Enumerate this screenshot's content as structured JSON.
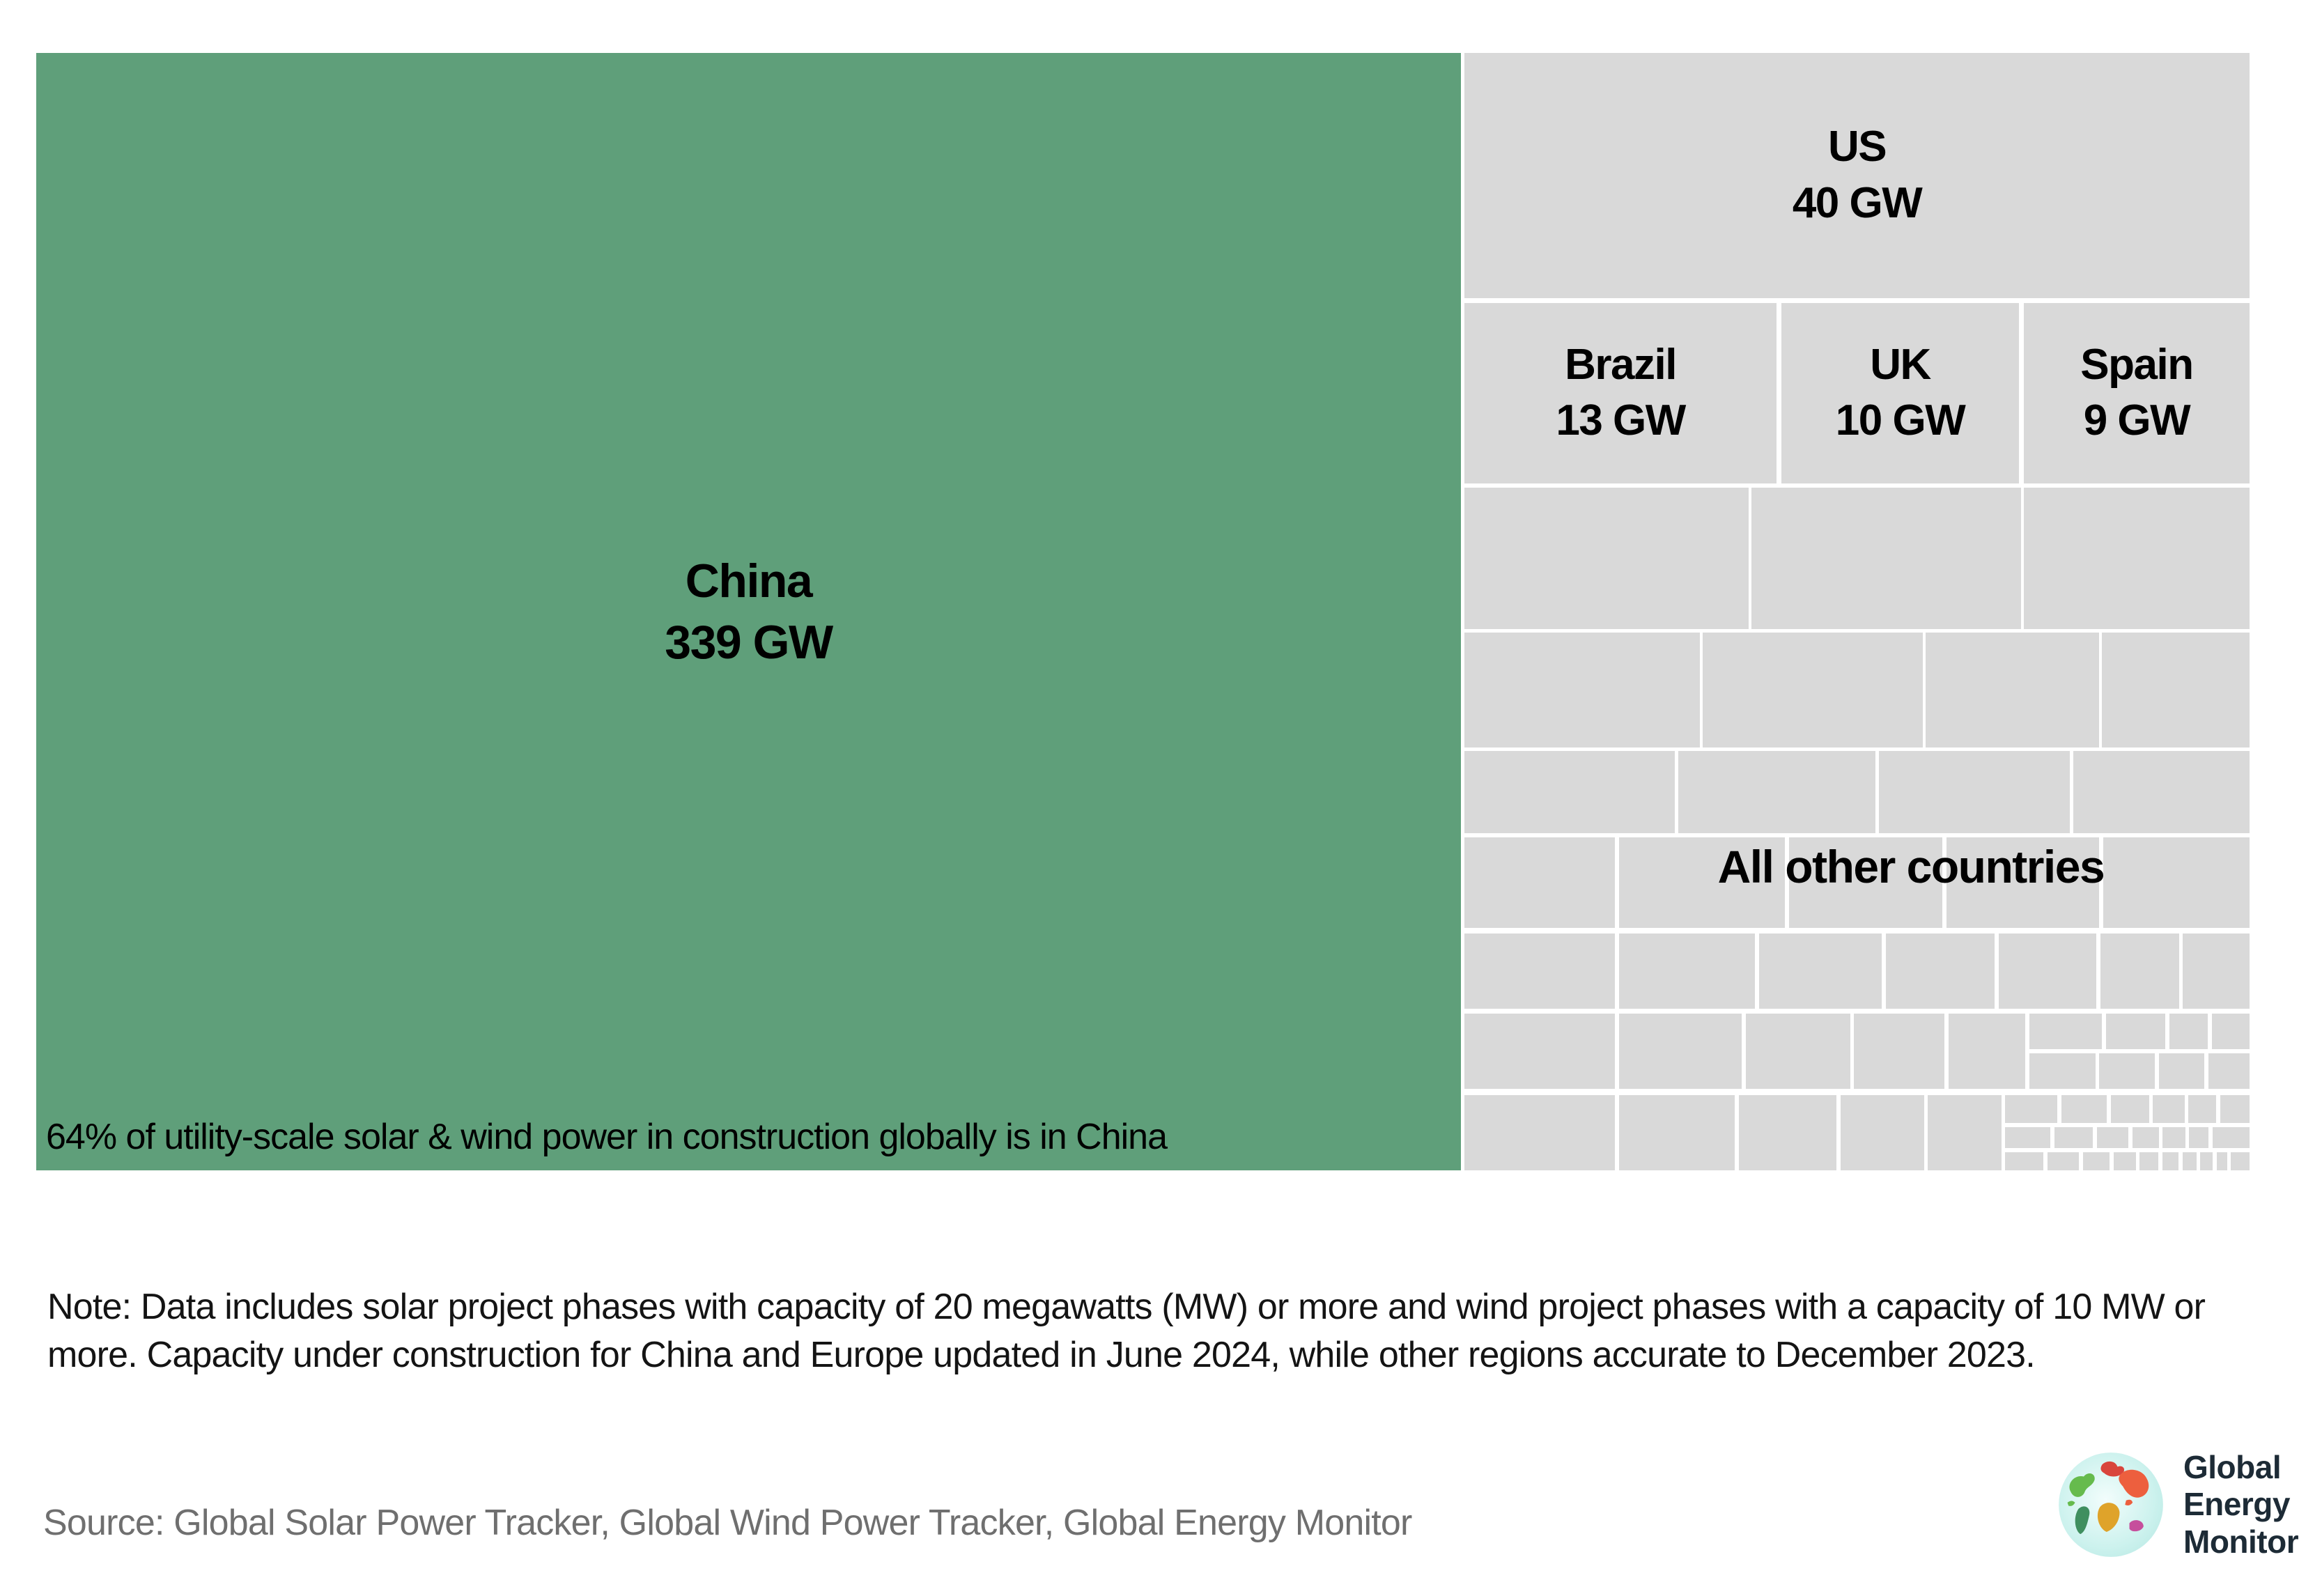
{
  "chart_data": {
    "type": "treemap",
    "unit": "GW",
    "series": [
      {
        "name": "China",
        "value": 339,
        "label": "China 339 GW",
        "color": "#5f9f7a"
      },
      {
        "name": "US",
        "value": 40,
        "label": "US 40 GW",
        "color": "#d9d9d9"
      },
      {
        "name": "Brazil",
        "value": 13,
        "label": "Brazil 13 GW",
        "color": "#d9d9d9"
      },
      {
        "name": "UK",
        "value": 10,
        "label": "UK 10 GW",
        "color": "#d9d9d9"
      },
      {
        "name": "Spain",
        "value": 9,
        "label": "Spain 9 GW",
        "color": "#d9d9d9"
      },
      {
        "name": "All other countries",
        "value": null,
        "label": "All other countries",
        "color": "#d9d9d9"
      }
    ],
    "annotations": [
      "64% of utility-scale solar & wind power in construction globally is in China"
    ],
    "legend_position": "none",
    "grid": false
  },
  "treemap": {
    "china": {
      "name": "China",
      "value": "339 GW",
      "annotation": "64% of utility-scale solar & wind power in construction globally is in China"
    },
    "us": {
      "name": "US",
      "value": "40 GW"
    },
    "brazil": {
      "name": "Brazil",
      "value": "13 GW"
    },
    "uk": {
      "name": "UK",
      "value": "10 GW"
    },
    "spain": {
      "name": "Spain",
      "value": "9 GW"
    },
    "others": {
      "label": "All other countries",
      "boxes": [
        [
          64.53,
          38.9,
          12.84,
          12.66
        ],
        [
          77.49,
          38.9,
          12.18,
          12.66
        ],
        [
          89.8,
          38.9,
          10.2,
          12.66
        ],
        [
          64.53,
          51.87,
          10.64,
          10.29
        ],
        [
          75.29,
          51.87,
          9.95,
          10.29
        ],
        [
          85.36,
          51.87,
          7.84,
          10.29
        ],
        [
          93.33,
          51.87,
          6.67,
          10.29
        ],
        [
          64.53,
          62.47,
          9.51,
          7.36
        ],
        [
          74.19,
          62.47,
          8.91,
          7.36
        ],
        [
          83.25,
          62.47,
          8.62,
          7.36
        ],
        [
          92.04,
          62.47,
          7.96,
          7.36
        ],
        [
          64.53,
          70.2,
          6.8,
          8.1
        ],
        [
          71.51,
          70.2,
          7.49,
          8.1
        ],
        [
          79.19,
          70.2,
          6.92,
          8.1
        ],
        [
          86.31,
          70.2,
          6.89,
          8.1
        ],
        [
          93.39,
          70.2,
          6.61,
          8.1
        ],
        [
          64.53,
          78.8,
          6.8,
          6.73
        ],
        [
          71.51,
          78.8,
          6.14,
          6.73
        ],
        [
          77.84,
          78.8,
          5.54,
          6.73
        ],
        [
          83.57,
          78.8,
          4.91,
          6.73
        ],
        [
          88.66,
          78.8,
          4.41,
          6.73
        ],
        [
          93.25,
          78.8,
          3.56,
          6.73
        ],
        [
          96.99,
          78.8,
          3.01,
          6.73
        ],
        [
          64.53,
          85.97,
          6.8,
          6.73
        ],
        [
          71.51,
          85.97,
          5.54,
          6.73
        ],
        [
          77.23,
          85.97,
          4.72,
          6.73
        ],
        [
          82.13,
          85.97,
          4.09,
          6.73
        ],
        [
          86.4,
          85.97,
          3.46,
          6.73
        ],
        [
          90.04,
          85.97,
          3.3,
          3.18
        ],
        [
          93.52,
          85.97,
          2.68,
          3.18
        ],
        [
          96.38,
          85.97,
          1.73,
          3.18
        ],
        [
          98.29,
          85.97,
          1.71,
          3.18
        ],
        [
          90.04,
          89.53,
          2.99,
          3.17
        ],
        [
          93.21,
          89.53,
          2.52,
          3.17
        ],
        [
          95.91,
          89.53,
          2.05,
          3.17
        ],
        [
          98.14,
          89.53,
          1.86,
          3.17
        ],
        [
          64.53,
          93.27,
          6.8,
          6.73
        ],
        [
          71.51,
          93.27,
          5.23,
          6.73
        ],
        [
          76.92,
          93.27,
          4.41,
          6.73
        ],
        [
          81.51,
          93.27,
          3.78,
          6.73
        ],
        [
          85.47,
          93.27,
          3.31,
          6.73
        ],
        [
          88.96,
          93.27,
          2.36,
          2.49
        ],
        [
          91.5,
          93.27,
          2.05,
          2.49
        ],
        [
          93.73,
          93.27,
          1.73,
          2.49
        ],
        [
          95.64,
          93.27,
          1.42,
          2.49
        ],
        [
          97.24,
          93.27,
          1.26,
          2.49
        ],
        [
          98.68,
          93.27,
          1.32,
          2.49
        ],
        [
          88.96,
          96.13,
          2.05,
          1.87
        ],
        [
          91.19,
          96.13,
          1.73,
          1.87
        ],
        [
          93.1,
          96.13,
          1.42,
          1.87
        ],
        [
          94.7,
          96.13,
          1.2,
          1.87
        ],
        [
          96.08,
          96.13,
          1.01,
          1.87
        ],
        [
          97.27,
          96.13,
          0.88,
          1.87
        ],
        [
          98.33,
          96.13,
          1.67,
          1.87
        ],
        [
          88.96,
          98.38,
          1.73,
          1.62
        ],
        [
          90.87,
          98.38,
          1.42,
          1.62
        ],
        [
          92.47,
          98.38,
          1.2,
          1.62
        ],
        [
          93.85,
          98.38,
          1.01,
          1.62
        ],
        [
          95.04,
          98.38,
          0.85,
          1.62
        ],
        [
          96.07,
          98.38,
          0.72,
          1.62
        ],
        [
          96.97,
          98.38,
          0.63,
          1.62
        ],
        [
          97.78,
          98.38,
          0.55,
          1.62
        ],
        [
          98.51,
          98.38,
          0.47,
          1.62
        ],
        [
          99.16,
          98.38,
          0.84,
          1.62
        ]
      ]
    }
  },
  "note": {
    "text": "Note: Data includes solar project phases with capacity of 20 megawatts (MW) or more and wind project phases with a capacity of 10 MW or more. Capacity under construction for China and Europe updated in June 2024, while other regions accurate to December 2023."
  },
  "source": {
    "text": "Source: Global Solar Power Tracker, Global Wind Power Tracker, Global Energy Monitor"
  },
  "logo": {
    "line1": "Global",
    "line2": "Energy",
    "line3": "Monitor"
  },
  "colors": {
    "china_green": "#5f9f7a",
    "other_gray": "#d9d9d9",
    "label_black": "#000000",
    "source_gray": "#6f6f6f",
    "logo_navy": "#1d2b36",
    "background": "#ffffff"
  }
}
